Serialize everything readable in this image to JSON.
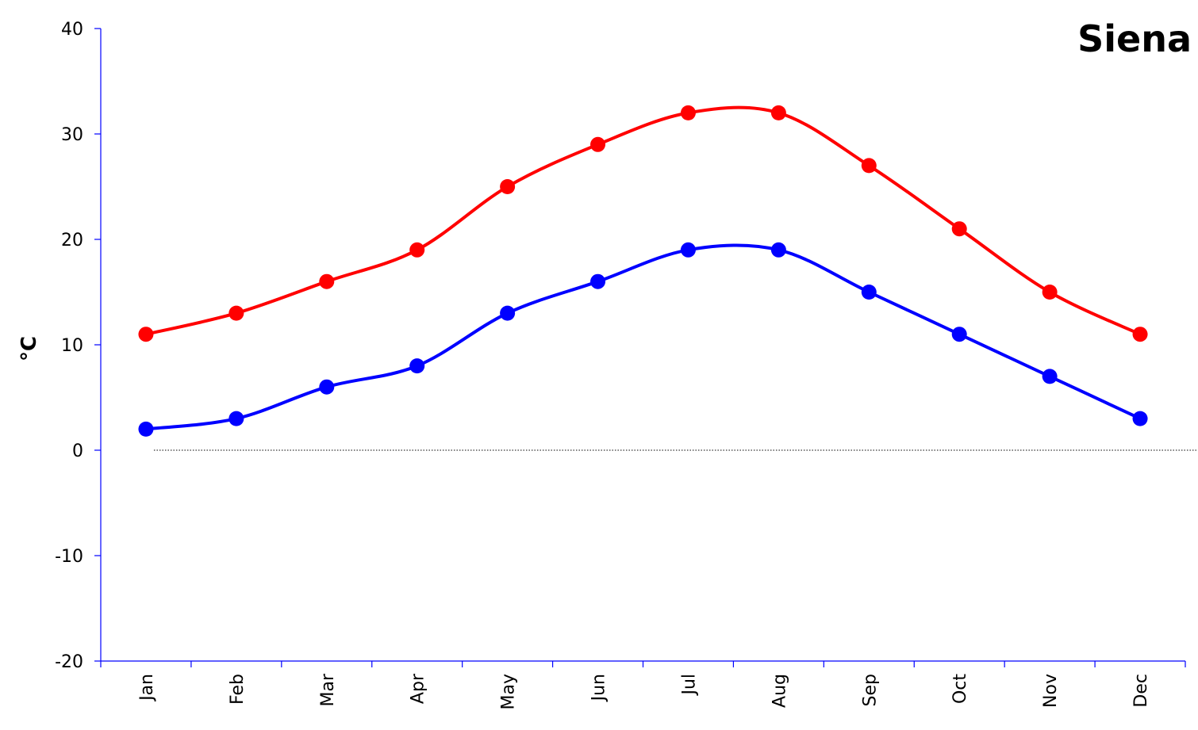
{
  "chart_data": {
    "type": "line",
    "title": "Siena",
    "xlabel": "",
    "ylabel": "°C",
    "ylim": [
      -20,
      40
    ],
    "yticks": [
      "40",
      "30",
      "20",
      "10",
      "0",
      "-10",
      "-20"
    ],
    "categories": [
      "Jan",
      "Feb",
      "Mar",
      "Apr",
      "May",
      "Jun",
      "Jul",
      "Aug",
      "Sep",
      "Oct",
      "Nov",
      "Dec"
    ],
    "series": [
      {
        "values": [
          11,
          13,
          16,
          19,
          25,
          29,
          32,
          32,
          27,
          21,
          15,
          11
        ],
        "color": "#ff0000"
      },
      {
        "values": [
          2,
          3,
          6,
          8,
          13,
          16,
          19,
          19,
          15,
          11,
          7,
          3
        ],
        "color": "#0000ff"
      }
    ],
    "smooth": true,
    "markers": "filled-circle",
    "zero_line": "dotted",
    "grid": false,
    "legend": "none",
    "axis_color": "#0000ff"
  }
}
